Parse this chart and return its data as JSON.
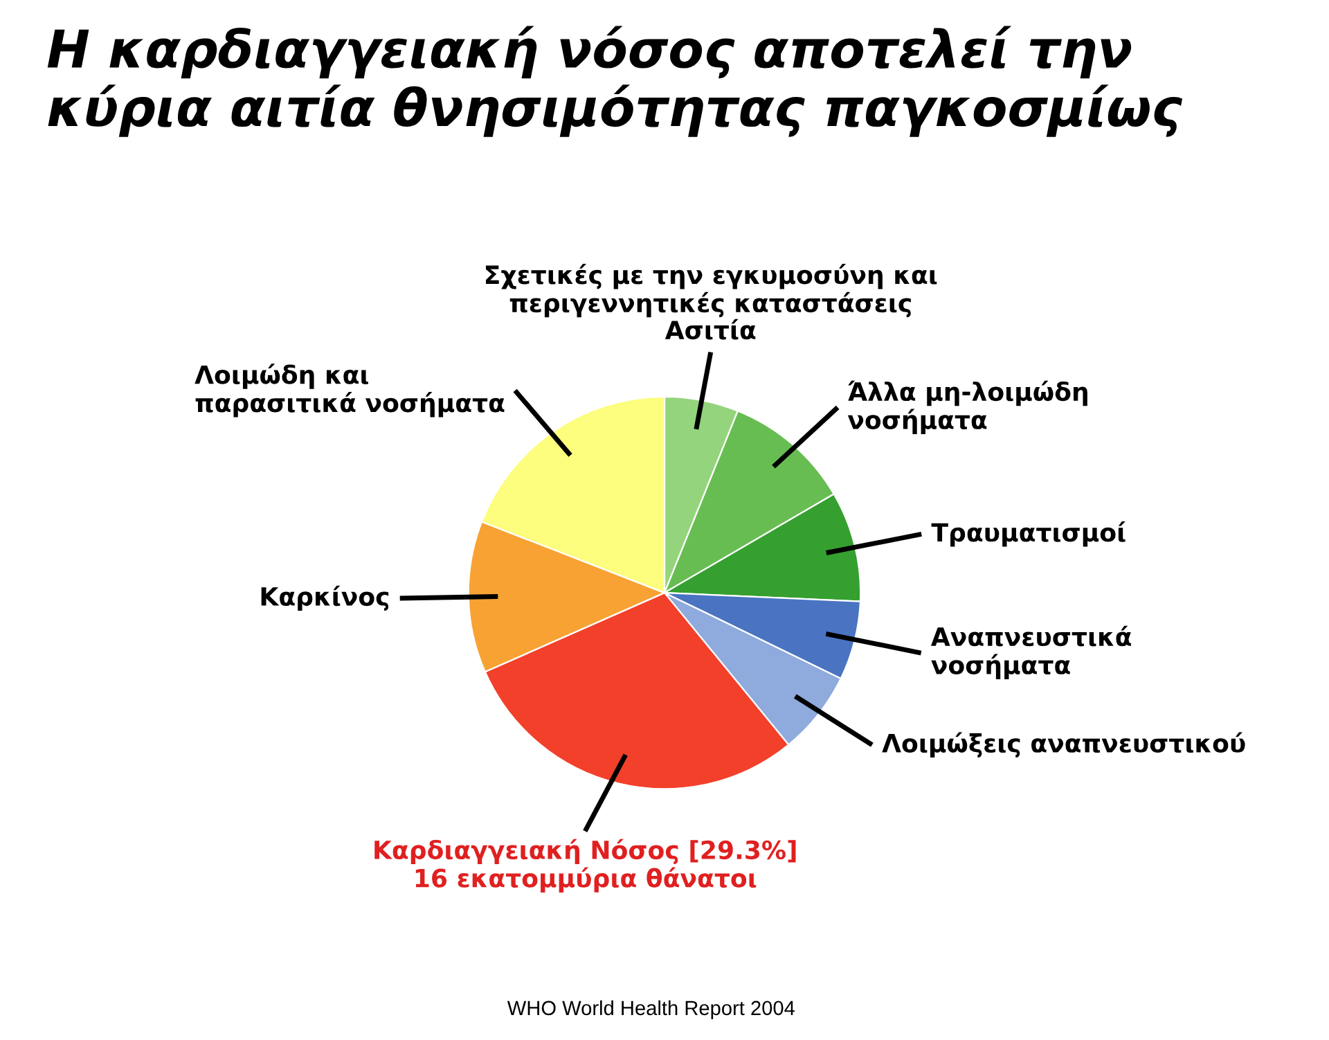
{
  "chart_data": {
    "type": "pie",
    "title": "Η καρδιαγγειακή νόσος αποτελεί την\nκύρια αιτία θνησιμότητας παγκοσμίως",
    "categories": [
      "Σχετικές με την εγκυμοσύνη και\nπεριγεννητικές καταστάσεις\nΑσιτία",
      "Άλλα μη-λοιμώδη\nνοσήματα",
      "Τραυματισμοί",
      "Αναπνευστικά\nνοσήματα",
      "Λοιμώξεις αναπνευστικού",
      "Καρδιαγγειακή Νόσος",
      "Καρκίνος",
      "Λοιμώδη και\nπαρασιτικά νοσήματα"
    ],
    "values": [
      6.1,
      10.5,
      9.1,
      6.5,
      6.9,
      29.3,
      12.5,
      19.1
    ],
    "colors": [
      "#93d47c",
      "#68bd52",
      "#35a02f",
      "#4a74c2",
      "#8faadc",
      "#f2402a",
      "#f7a233",
      "#fdfd7e"
    ],
    "value_labels": [
      null,
      null,
      null,
      null,
      null,
      "[29.3%]",
      null,
      null
    ],
    "annotations": [
      "16 εκατομμύρια θάνατοι",
      "WHO World Health Report 2004"
    ],
    "legend": false
  }
}
